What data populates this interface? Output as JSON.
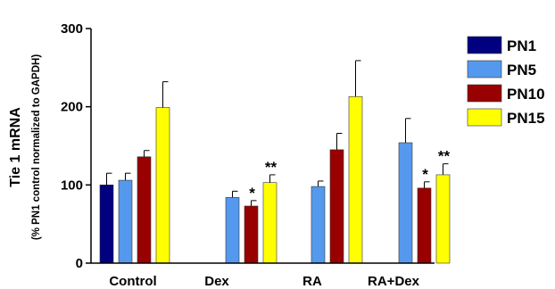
{
  "chart_data": {
    "type": "bar",
    "ylabel_line1": "Tie 1 mRNA",
    "ylabel_line2": "(% PN1 control normalized to GAPDH)",
    "ylim": [
      0,
      300
    ],
    "yticks": [
      "0",
      "100",
      "200",
      "300"
    ],
    "categories": [
      "Control",
      "Dex",
      "RA",
      "RA+Dex"
    ],
    "legend_position": "right",
    "series": [
      {
        "name": "PN1",
        "color": "#000080",
        "values": [
          100,
          null,
          null,
          null
        ],
        "errors": [
          15,
          null,
          null,
          null
        ],
        "sig": [
          "",
          "",
          "",
          ""
        ]
      },
      {
        "name": "PN5",
        "color": "#5599ee",
        "values": [
          106,
          84,
          98,
          154
        ],
        "errors": [
          9,
          8,
          7,
          31
        ],
        "sig": [
          "",
          "",
          "",
          ""
        ]
      },
      {
        "name": "PN10",
        "color": "#990000",
        "values": [
          136,
          73,
          145,
          96
        ],
        "errors": [
          8,
          7,
          21,
          8
        ],
        "sig": [
          "",
          "*",
          "",
          "*"
        ]
      },
      {
        "name": "PN15",
        "color": "#ffff00",
        "values": [
          199,
          103,
          213,
          113
        ],
        "errors": [
          33,
          10,
          46,
          14
        ],
        "sig": [
          "",
          "**",
          "",
          "**"
        ]
      }
    ]
  }
}
